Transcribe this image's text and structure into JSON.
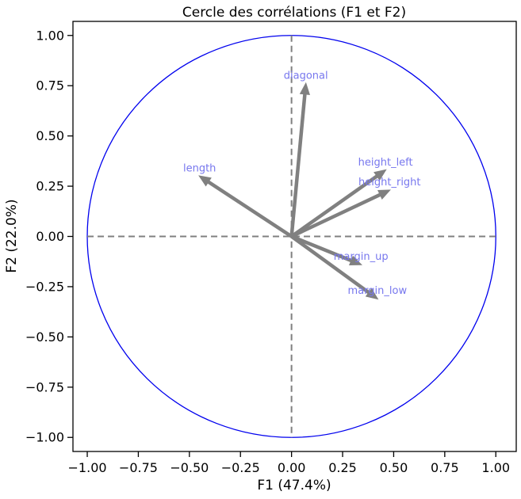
{
  "chart_data": {
    "type": "scatter",
    "title": "Cercle des corrélations (F1 et F2)",
    "xlabel": "F1 (47.4%)",
    "ylabel": "F2 (22.0%)",
    "xlim": [
      -1.07,
      1.1
    ],
    "ylim": [
      -1.07,
      1.07
    ],
    "xticks": [
      -1.0,
      -0.75,
      -0.5,
      -0.25,
      0.0,
      0.25,
      0.5,
      0.75,
      1.0
    ],
    "xtick_labels": [
      "−1.00",
      "−0.75",
      "−0.50",
      "−0.25",
      "0.00",
      "0.25",
      "0.50",
      "0.75",
      "1.00"
    ],
    "yticks": [
      1.0,
      0.75,
      0.5,
      0.25,
      0.0,
      -0.25,
      -0.5,
      -0.75,
      -1.0
    ],
    "ytick_labels": [
      "1.00",
      "0.75",
      "0.50",
      "0.25",
      "0.00",
      "−0.25",
      "−0.50",
      "−0.75",
      "−1.00"
    ],
    "grid": false,
    "circle": {
      "radius": 1.0,
      "color": "#0000ee"
    },
    "arrow_color": "#808080",
    "label_color": "#7777ee",
    "reference_line_color": "#808080",
    "variables": [
      {
        "name": "diagonal",
        "x": 0.07,
        "y": 0.76
      },
      {
        "name": "length",
        "x": -0.45,
        "y": 0.3
      },
      {
        "name": "height_left",
        "x": 0.46,
        "y": 0.33
      },
      {
        "name": "height_right",
        "x": 0.48,
        "y": 0.23
      },
      {
        "name": "margin_up",
        "x": 0.34,
        "y": -0.14
      },
      {
        "name": "margin_low",
        "x": 0.42,
        "y": -0.31
      }
    ]
  }
}
